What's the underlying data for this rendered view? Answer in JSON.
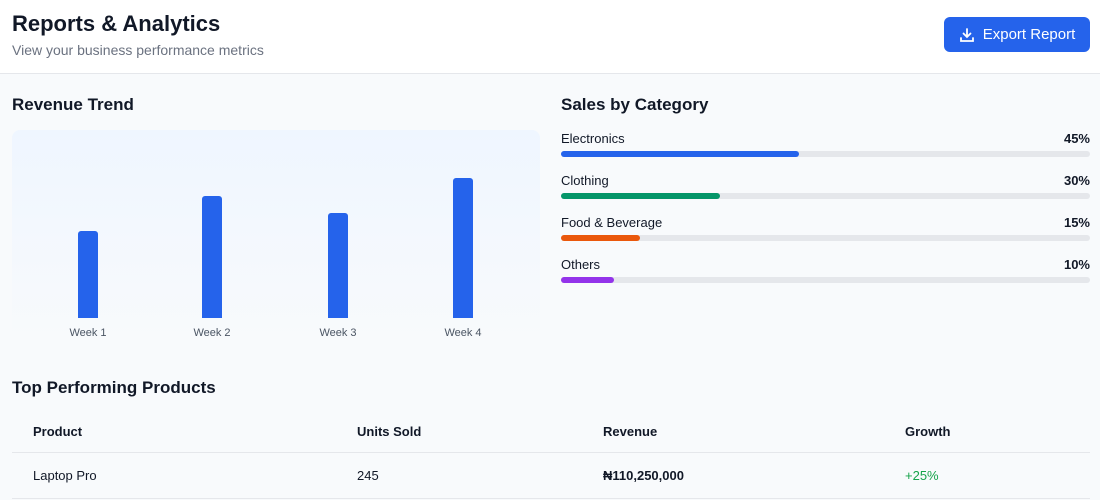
{
  "header": {
    "title": "Reports & Analytics",
    "subtitle": "View your business performance metrics",
    "export_label": "Export Report",
    "export_icon": "download-icon"
  },
  "revenue": {
    "title": "Revenue Trend"
  },
  "chart_data": {
    "type": "bar",
    "title": "Revenue Trend",
    "categories": [
      "Week 1",
      "Week 2",
      "Week 3",
      "Week 4"
    ],
    "values": [
      50,
      70,
      60,
      80
    ],
    "ylim": [
      0,
      100
    ],
    "grid": false,
    "color": "#2563eb"
  },
  "sales": {
    "title": "Sales by Category",
    "items": [
      {
        "label": "Electronics",
        "percent": "45%",
        "value": 45,
        "color": "#2563eb"
      },
      {
        "label": "Clothing",
        "percent": "30%",
        "value": 30,
        "color": "#059669"
      },
      {
        "label": "Food & Beverage",
        "percent": "15%",
        "value": 15,
        "color": "#ea580c"
      },
      {
        "label": "Others",
        "percent": "10%",
        "value": 10,
        "color": "#9333ea"
      }
    ]
  },
  "products": {
    "title": "Top Performing Products",
    "columns": [
      "Product",
      "Units Sold",
      "Revenue",
      "Growth"
    ],
    "rows": [
      {
        "product": "Laptop Pro",
        "units": "245",
        "revenue": "₦110,250,000",
        "growth": "+25%"
      }
    ],
    "growth_color": "#16a34a"
  }
}
